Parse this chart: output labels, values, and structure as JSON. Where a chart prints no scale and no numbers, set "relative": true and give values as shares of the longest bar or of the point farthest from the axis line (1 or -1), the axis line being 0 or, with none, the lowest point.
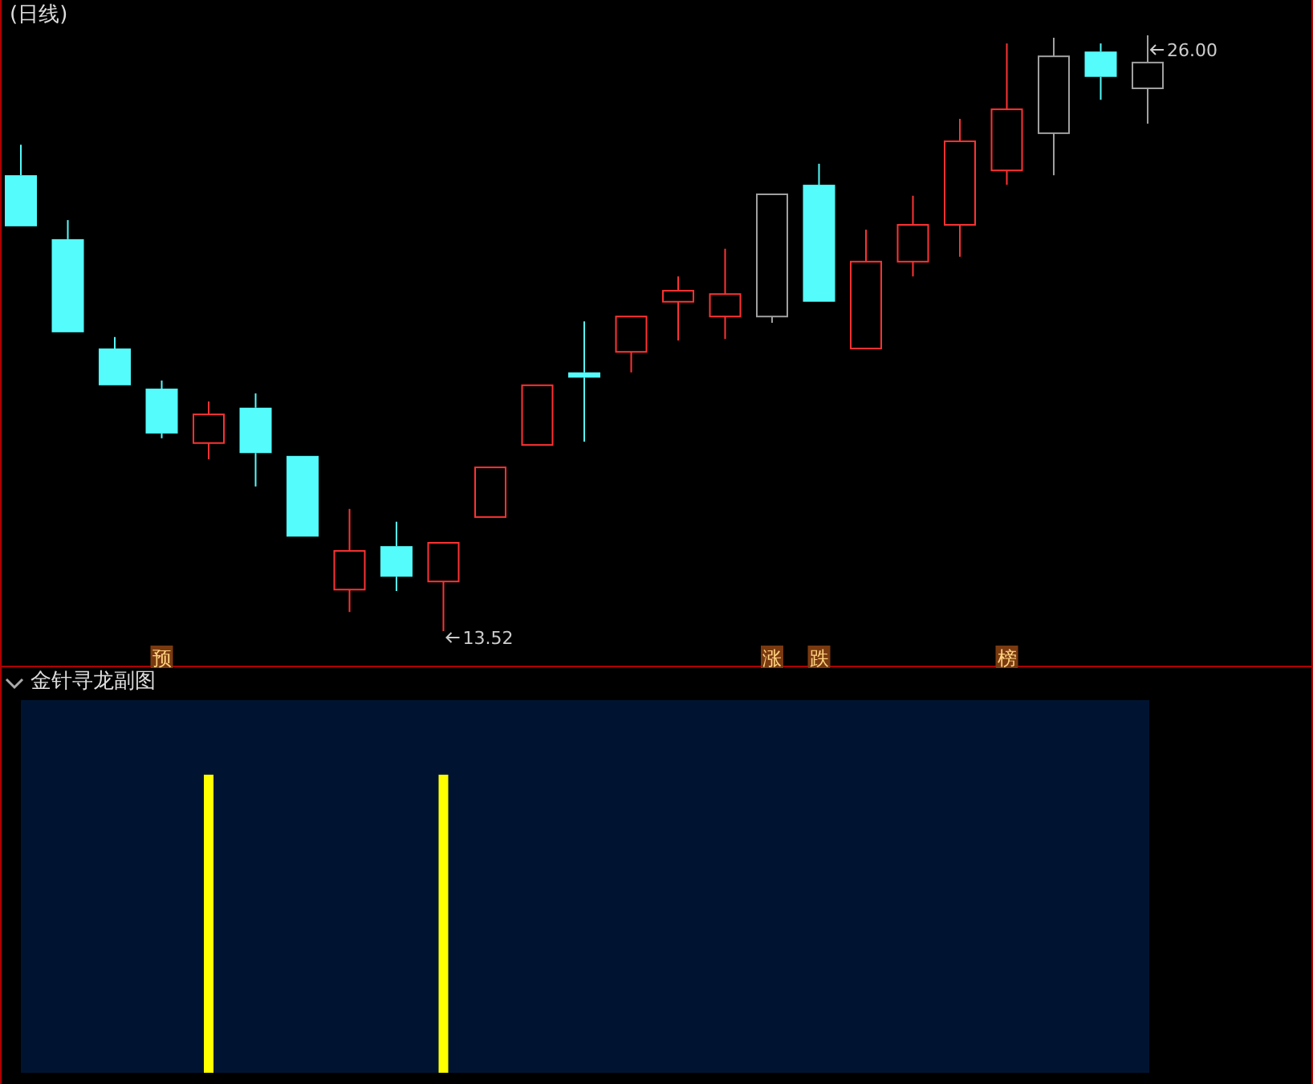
{
  "chart_data": [
    {
      "type": "candlestick",
      "subtitle": "(日线)",
      "categories": [
        null,
        null,
        null,
        "预",
        null,
        null,
        null,
        null,
        null,
        null,
        null,
        null,
        null,
        null,
        null,
        null,
        "涨",
        "跌",
        null,
        null,
        null,
        "榜",
        null,
        null,
        null
      ],
      "ohlc": [
        [
          23.07,
          23.71,
          22.0,
          22.0
        ],
        [
          21.73,
          22.13,
          19.78,
          19.78
        ],
        [
          19.44,
          19.68,
          18.67,
          18.67
        ],
        [
          18.6,
          18.77,
          17.56,
          17.66
        ],
        [
          17.46,
          18.33,
          17.12,
          18.06
        ],
        [
          18.2,
          18.5,
          16.55,
          17.25
        ],
        [
          17.19,
          17.19,
          15.5,
          15.5
        ],
        [
          14.39,
          16.08,
          13.92,
          15.2
        ],
        [
          15.3,
          15.81,
          14.36,
          14.66
        ],
        [
          14.56,
          15.37,
          13.52,
          15.37
        ],
        [
          15.91,
          16.95,
          15.91,
          16.95
        ],
        [
          17.42,
          18.67,
          17.42,
          18.67
        ],
        [
          18.94,
          20.01,
          17.49,
          18.83
        ],
        [
          19.37,
          20.11,
          18.94,
          20.11
        ],
        [
          20.42,
          20.95,
          19.61,
          20.65
        ],
        [
          20.11,
          21.53,
          19.64,
          20.58
        ],
        [
          20.11,
          22.67,
          19.98,
          22.67
        ],
        [
          22.87,
          23.31,
          20.42,
          20.42
        ],
        [
          19.44,
          21.93,
          19.44,
          21.26
        ],
        [
          21.26,
          22.64,
          20.95,
          22.03
        ],
        [
          22.03,
          24.25,
          21.36,
          23.78
        ],
        [
          23.17,
          25.83,
          22.87,
          24.45
        ],
        [
          23.95,
          25.95,
          23.07,
          25.56
        ],
        [
          25.66,
          25.83,
          24.65,
          25.13
        ],
        [
          24.89,
          26.0,
          24.15,
          25.43
        ]
      ],
      "colors": [
        "#54fcfc",
        "#54fcfc",
        "#54fcfc",
        "#54fcfc",
        "#ff3232",
        "#54fcfc",
        "#54fcfc",
        "#ff3232",
        "#54fcfc",
        "#ff3232",
        "#ff3232",
        "#ff3232",
        "#54fcfc",
        "#ff3232",
        "#ff3232",
        "#ff3232",
        "#a0a0a0",
        "#54fcfc",
        "#ff3232",
        "#ff3232",
        "#ff3232",
        "#ff3232",
        "#a0a0a0",
        "#54fcfc",
        "#a0a0a0"
      ],
      "annotations": [
        "26.00",
        "13.52"
      ]
    },
    {
      "type": "bar",
      "title": "金针寻龙副图",
      "relative": true,
      "color": "#ffff00",
      "categories": [
        null,
        null,
        null,
        null,
        null,
        null,
        null,
        null,
        null,
        null,
        null,
        null,
        null,
        null,
        null,
        null,
        null,
        null,
        null,
        null,
        null,
        null,
        null,
        null,
        null
      ],
      "values": [
        0,
        0,
        0,
        0,
        1,
        0,
        0,
        0,
        0,
        1,
        0,
        0,
        0,
        0,
        0,
        0,
        0,
        0,
        0,
        0,
        0,
        0,
        0,
        0,
        0
      ]
    }
  ]
}
